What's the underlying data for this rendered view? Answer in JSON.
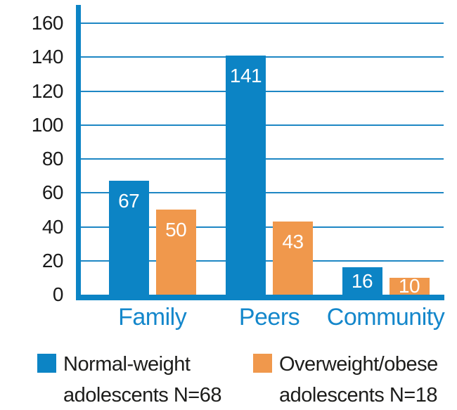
{
  "colors": {
    "bar_blue": "#0C84C5",
    "bar_orange": "#F0984C",
    "axis_blue": "#0C84C5",
    "gridline_blue": "#1E87C4",
    "category_label_blue": "#1487CB",
    "tick_label_black": "#1A1A1A",
    "legend_text_black": "#1D1D1B",
    "value_label_white": "#FFFFFF"
  },
  "chart_data": {
    "type": "bar",
    "title": "",
    "xlabel": "",
    "ylabel": "",
    "categories": [
      "Family",
      "Peers",
      "Community"
    ],
    "series": [
      {
        "name": "Normal-weight adolescents N=68",
        "color_key": "bar_blue",
        "values": [
          67,
          141,
          16
        ]
      },
      {
        "name": "Overweight/obese adolescents N=18",
        "color_key": "bar_orange",
        "values": [
          50,
          43,
          10
        ]
      }
    ],
    "ylim": [
      0,
      160
    ],
    "yticks": [
      0,
      20,
      40,
      60,
      80,
      100,
      120,
      140,
      160
    ],
    "grid": true,
    "value_labels": true,
    "legend_position": "bottom"
  },
  "legend": {
    "items": [
      {
        "line1": "Normal-weight",
        "line2": "adolescents N=68",
        "color_key": "bar_blue"
      },
      {
        "line1": "Overweight/obese",
        "line2": "adolescents N=18",
        "color_key": "bar_orange"
      }
    ]
  }
}
